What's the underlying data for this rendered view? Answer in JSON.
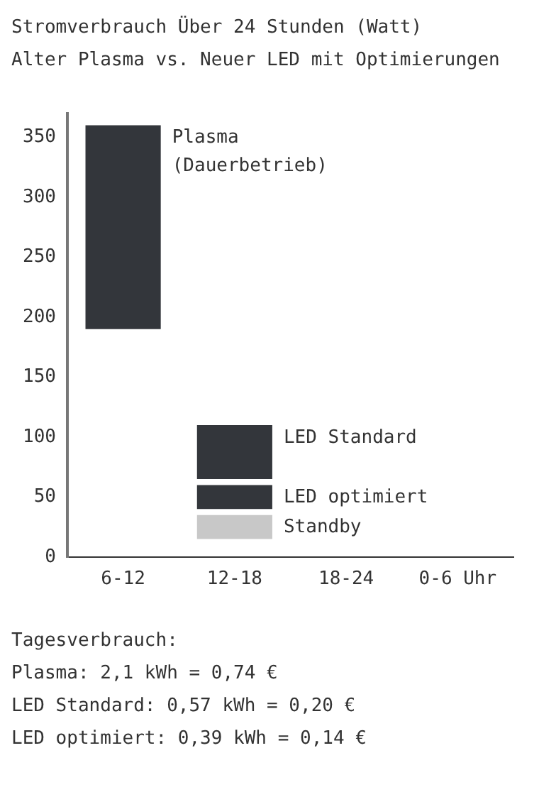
{
  "chart_data": {
    "type": "bar",
    "title": "Stromverbrauch Über 24 Stunden (Watt)",
    "subtitle": "Alter Plasma vs. Neuer LED mit Optimierungen",
    "categories": [
      "6-12",
      "12-18",
      "18-24",
      "0-6 Uhr"
    ],
    "series": [
      {
        "name": "Plasma (Dauerbetrieb)",
        "color": "#33363b",
        "values": [
          170,
          null,
          null,
          null
        ],
        "base": [
          190,
          null,
          null,
          null
        ]
      },
      {
        "name": "LED Standard",
        "color": "#33363b",
        "values": [
          null,
          45,
          null,
          null
        ],
        "base": [
          null,
          65,
          null,
          null
        ]
      },
      {
        "name": "LED optimiert",
        "color": "#33363b",
        "values": [
          null,
          20,
          null,
          null
        ],
        "base": [
          null,
          40,
          null,
          null
        ]
      },
      {
        "name": "Standby",
        "color": "#c8c8c8",
        "values": [
          null,
          20,
          null,
          null
        ],
        "base": [
          null,
          15,
          null,
          null
        ]
      }
    ],
    "ylim": [
      0,
      370
    ],
    "yticks": [
      0,
      50,
      100,
      150,
      200,
      250,
      300,
      350
    ],
    "grid": false,
    "legend": false,
    "annotations": [
      "Tagesverbrauch:",
      "Plasma: 2,1 kWh = 0,74 €",
      "LED Standard: 0,57 kWh = 0,20 €",
      "LED optimiert: 0,39 kWh = 0,14 €"
    ]
  }
}
